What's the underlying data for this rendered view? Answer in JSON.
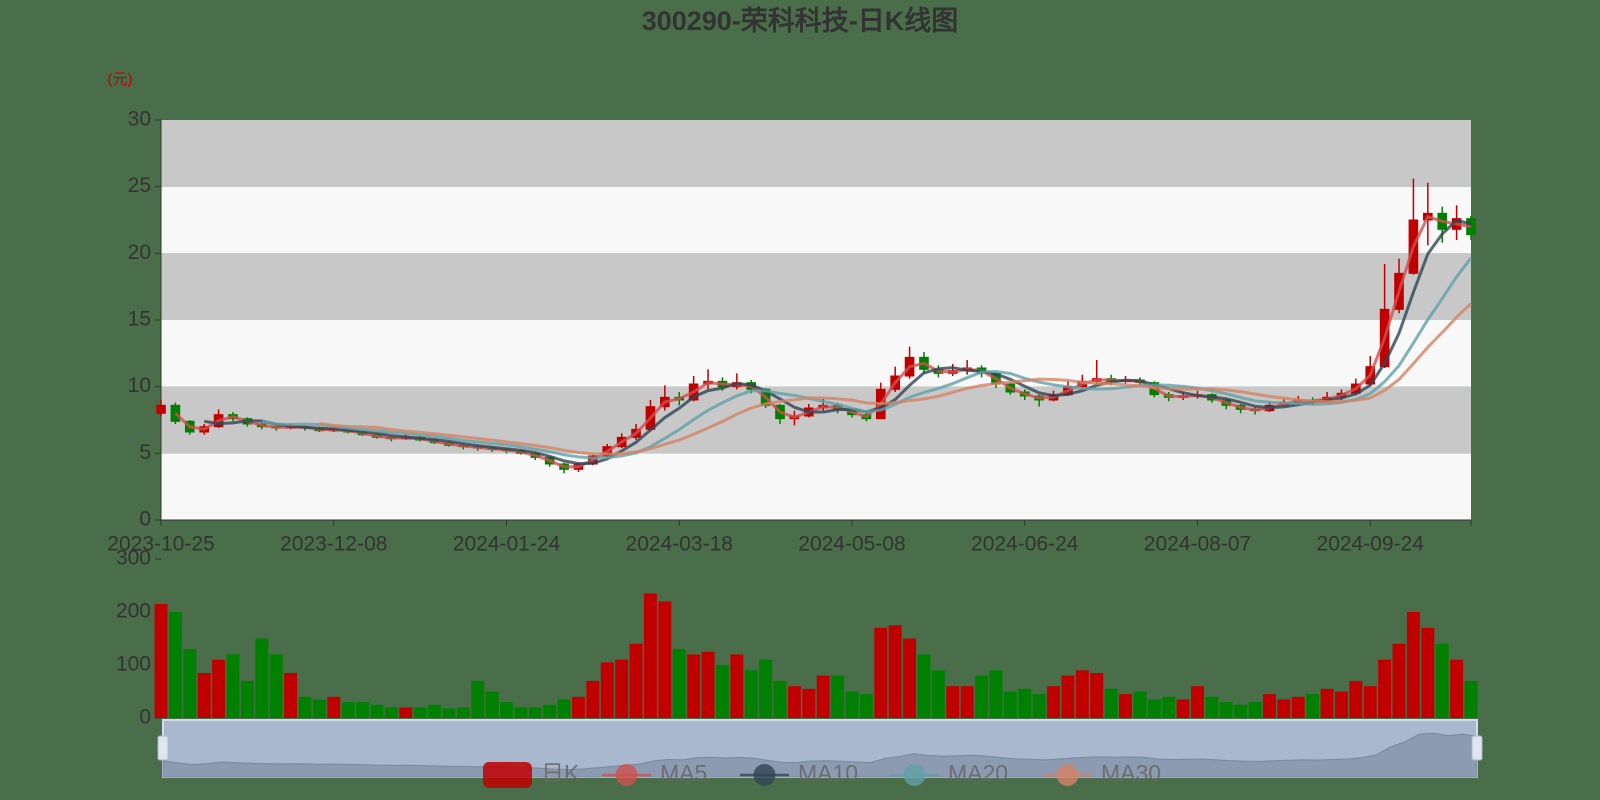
{
  "chart_data": [
    {
      "type": "candlestick",
      "title": "300290-荣科科技-日K线图",
      "y_label": "(元)",
      "categories": [
        "2023-10-25",
        null,
        null,
        null,
        null,
        null,
        null,
        null,
        null,
        null,
        null,
        null,
        "2023-12-08",
        null,
        null,
        null,
        null,
        null,
        null,
        null,
        null,
        null,
        null,
        null,
        "2024-01-24",
        null,
        null,
        null,
        null,
        null,
        null,
        null,
        null,
        null,
        null,
        null,
        "2024-03-18",
        null,
        null,
        null,
        null,
        null,
        null,
        null,
        null,
        null,
        null,
        null,
        "2024-05-08",
        null,
        null,
        null,
        null,
        null,
        null,
        null,
        null,
        null,
        null,
        null,
        "2024-06-24",
        null,
        null,
        null,
        null,
        null,
        null,
        null,
        null,
        null,
        null,
        null,
        "2024-08-07",
        null,
        null,
        null,
        null,
        null,
        null,
        null,
        null,
        null,
        null,
        null,
        "2024-09-24",
        null,
        null,
        null,
        null,
        null,
        null,
        null
      ],
      "series": [
        {
          "name": "日K",
          "color": "#c00000",
          "color_down": "#008000",
          "values": [
            [
              8.0,
              8.6,
              7.8,
              9.0
            ],
            [
              8.6,
              7.4,
              7.2,
              8.8
            ],
            [
              7.4,
              6.6,
              6.4,
              7.5
            ],
            [
              6.6,
              7.0,
              6.4,
              7.2
            ],
            [
              7.0,
              7.9,
              6.9,
              8.3
            ],
            [
              7.9,
              7.6,
              7.4,
              8.1
            ],
            [
              7.6,
              7.2,
              7.0,
              7.7
            ],
            [
              7.2,
              7.0,
              6.8,
              7.3
            ],
            [
              7.0,
              6.9,
              6.7,
              7.2
            ],
            [
              6.9,
              7.0,
              6.8,
              7.2
            ],
            [
              7.0,
              6.9,
              6.7,
              7.1
            ],
            [
              6.9,
              6.7,
              6.6,
              7.0
            ],
            [
              6.7,
              6.8,
              6.6,
              7.0
            ],
            [
              6.8,
              6.6,
              6.5,
              6.9
            ],
            [
              6.6,
              6.4,
              6.3,
              6.7
            ],
            [
              6.4,
              6.2,
              6.1,
              6.5
            ],
            [
              6.2,
              6.1,
              5.9,
              6.3
            ],
            [
              6.1,
              6.2,
              6.0,
              6.4
            ],
            [
              6.2,
              6.0,
              5.9,
              6.3
            ],
            [
              6.0,
              5.8,
              5.7,
              6.1
            ],
            [
              5.8,
              5.6,
              5.5,
              5.9
            ],
            [
              5.6,
              5.5,
              5.3,
              5.7
            ],
            [
              5.5,
              5.4,
              5.2,
              5.6
            ],
            [
              5.4,
              5.3,
              5.1,
              5.5
            ],
            [
              5.3,
              5.2,
              5.0,
              5.4
            ],
            [
              5.2,
              5.0,
              4.9,
              5.3
            ],
            [
              5.0,
              4.7,
              4.5,
              5.1
            ],
            [
              4.7,
              4.2,
              4.0,
              4.8
            ],
            [
              4.2,
              3.8,
              3.5,
              4.3
            ],
            [
              3.8,
              4.2,
              3.6,
              4.3
            ],
            [
              4.2,
              4.8,
              4.1,
              4.9
            ],
            [
              4.8,
              5.5,
              4.7,
              5.7
            ],
            [
              5.5,
              6.2,
              5.4,
              6.5
            ],
            [
              6.2,
              6.8,
              6.0,
              7.2
            ],
            [
              6.8,
              8.5,
              6.7,
              9.0
            ],
            [
              8.5,
              9.2,
              8.2,
              10.1
            ],
            [
              9.2,
              9.0,
              8.6,
              9.6
            ],
            [
              9.0,
              10.2,
              8.9,
              10.8
            ],
            [
              10.2,
              10.4,
              9.8,
              11.3
            ],
            [
              10.4,
              10.0,
              9.7,
              10.7
            ],
            [
              10.0,
              10.3,
              9.8,
              11.0
            ],
            [
              10.3,
              9.8,
              9.5,
              10.5
            ],
            [
              9.8,
              8.6,
              8.4,
              9.9
            ],
            [
              8.6,
              7.6,
              7.2,
              8.7
            ],
            [
              7.6,
              7.8,
              7.1,
              8.2
            ],
            [
              7.8,
              8.4,
              7.7,
              8.7
            ],
            [
              8.4,
              8.6,
              8.2,
              9.1
            ],
            [
              8.6,
              8.3,
              8.0,
              8.8
            ],
            [
              8.3,
              7.9,
              7.7,
              8.4
            ],
            [
              7.9,
              7.6,
              7.4,
              8.0
            ],
            [
              7.6,
              9.8,
              7.6,
              10.3
            ],
            [
              9.8,
              10.8,
              9.6,
              11.5
            ],
            [
              10.8,
              12.2,
              10.6,
              13.0
            ],
            [
              12.2,
              11.3,
              11.0,
              12.6
            ],
            [
              11.3,
              11.0,
              10.7,
              11.6
            ],
            [
              11.0,
              11.2,
              10.8,
              11.7
            ],
            [
              11.2,
              11.4,
              10.9,
              12.0
            ],
            [
              11.4,
              11.0,
              10.7,
              11.6
            ],
            [
              11.0,
              10.2,
              9.9,
              11.1
            ],
            [
              10.2,
              9.6,
              9.4,
              10.3
            ],
            [
              9.6,
              9.3,
              9.0,
              9.8
            ],
            [
              9.3,
              9.0,
              8.5,
              9.4
            ],
            [
              9.0,
              9.4,
              8.9,
              9.7
            ],
            [
              9.4,
              10.0,
              9.3,
              10.4
            ],
            [
              10.0,
              10.4,
              9.8,
              10.9
            ],
            [
              10.4,
              10.6,
              10.2,
              12.0
            ],
            [
              10.6,
              10.4,
              10.1,
              10.9
            ],
            [
              10.4,
              10.5,
              10.2,
              10.8
            ],
            [
              10.5,
              10.3,
              10.0,
              10.7
            ],
            [
              10.3,
              9.4,
              9.2,
              10.4
            ],
            [
              9.4,
              9.2,
              8.9,
              9.6
            ],
            [
              9.2,
              9.3,
              9.0,
              9.6
            ],
            [
              9.3,
              9.4,
              9.1,
              9.7
            ],
            [
              9.4,
              9.0,
              8.8,
              9.5
            ],
            [
              9.0,
              8.6,
              8.3,
              9.1
            ],
            [
              8.6,
              8.3,
              8.0,
              8.7
            ],
            [
              8.3,
              8.2,
              7.9,
              8.5
            ],
            [
              8.2,
              8.6,
              8.1,
              8.9
            ],
            [
              8.6,
              8.8,
              8.5,
              9.1
            ],
            [
              8.8,
              9.0,
              8.7,
              9.3
            ],
            [
              9.0,
              8.9,
              8.6,
              9.2
            ],
            [
              8.9,
              9.2,
              8.8,
              9.6
            ],
            [
              9.2,
              9.5,
              9.0,
              9.8
            ],
            [
              9.5,
              10.2,
              9.4,
              10.6
            ],
            [
              10.2,
              11.5,
              10.1,
              12.3
            ],
            [
              11.5,
              15.8,
              11.4,
              19.2
            ],
            [
              15.8,
              18.5,
              15.5,
              19.6
            ],
            [
              18.5,
              22.5,
              18.4,
              25.6
            ],
            [
              22.5,
              23.0,
              20.6,
              25.3
            ],
            [
              23.0,
              21.8,
              20.8,
              23.5
            ],
            [
              21.8,
              22.6,
              21.0,
              23.6
            ],
            [
              22.6,
              21.4,
              21.0,
              22.8
            ]
          ]
        },
        {
          "name": "MA5",
          "color": "#d0504e",
          "values": [
            null,
            8.0,
            7.0,
            6.8,
            7.45,
            7.75,
            7.4,
            7.1,
            6.95,
            6.95,
            6.95,
            6.8,
            6.75,
            6.7,
            6.5,
            6.3,
            6.15,
            6.15,
            6.1,
            5.9,
            5.7,
            5.55,
            5.45,
            5.35,
            5.25,
            5.1,
            4.85,
            4.45,
            4.0,
            4.0,
            4.5,
            5.15,
            5.85,
            6.5,
            7.65,
            8.85,
            9.1,
            9.6,
            10.3,
            10.2,
            10.15,
            10.05,
            9.2,
            8.1,
            7.7,
            8.1,
            8.5,
            8.45,
            8.1,
            7.75,
            8.7,
            10.3,
            11.5,
            11.75,
            11.15,
            11.1,
            11.3,
            11.2,
            10.6,
            9.9,
            9.45,
            9.15,
            9.2,
            9.7,
            10.2,
            10.5,
            10.5,
            10.45,
            10.4,
            9.85,
            9.3,
            9.25,
            9.35,
            9.2,
            8.8,
            8.45,
            8.25,
            8.4,
            8.7,
            8.9,
            8.95,
            9.05,
            9.35,
            9.85,
            10.85,
            13.65,
            17.15,
            20.5,
            22.75,
            22.4,
            22.2,
            22.0
          ]
        },
        {
          "name": "MA10",
          "color": "#2f4554",
          "values": [
            null,
            null,
            null,
            7.4,
            7.23,
            7.28,
            7.43,
            7.43,
            7.18,
            7.03,
            6.95,
            6.88,
            6.85,
            6.75,
            6.63,
            6.5,
            6.33,
            6.23,
            6.13,
            6.03,
            5.9,
            5.73,
            5.58,
            5.45,
            5.35,
            5.23,
            5.05,
            4.78,
            4.43,
            4.23,
            4.25,
            4.58,
            5.18,
            5.83,
            6.75,
            7.68,
            8.38,
            9.23,
            9.7,
            9.9,
            10.23,
            10.13,
            9.68,
            9.08,
            8.45,
            8.1,
            8.1,
            8.28,
            8.3,
            8.1,
            8.4,
            9.03,
            10.1,
            11.03,
            11.33,
            11.43,
            11.23,
            11.15,
            10.95,
            10.55,
            10.03,
            9.53,
            9.33,
            9.43,
            9.7,
            10.1,
            10.35,
            10.48,
            10.45,
            10.15,
            9.85,
            9.55,
            9.33,
            9.23,
            9.08,
            8.83,
            8.53,
            8.43,
            8.48,
            8.65,
            8.83,
            8.98,
            9.15,
            9.45,
            10.1,
            11.75,
            14.0,
            17.08,
            19.95,
            21.45,
            22.48,
            22.2
          ]
        },
        {
          "name": "MA20",
          "color": "#61a0a8",
          "values": [
            null,
            null,
            null,
            null,
            null,
            null,
            null,
            7.42,
            7.2,
            7.16,
            7.19,
            7.16,
            7.02,
            6.89,
            6.79,
            6.69,
            6.59,
            6.49,
            6.38,
            6.27,
            6.12,
            5.98,
            5.86,
            5.74,
            5.63,
            5.48,
            5.32,
            5.12,
            4.89,
            4.73,
            4.65,
            4.68,
            4.81,
            5.03,
            5.5,
            6.13,
            6.78,
            7.53,
            8.23,
            8.79,
            9.31,
            9.68,
            9.69,
            9.49,
            9.34,
            9.12,
            8.89,
            8.68,
            8.38,
            8.1,
            8.25,
            8.66,
            9.2,
            9.57,
            9.87,
            10.23,
            10.67,
            11.09,
            11.14,
            10.99,
            10.63,
            10.34,
            10.14,
            9.99,
            9.87,
            9.82,
            9.84,
            9.96,
            10.08,
            10.13,
            10.1,
            10.02,
            9.89,
            9.69,
            9.47,
            9.19,
            8.93,
            8.83,
            8.78,
            8.74,
            8.68,
            8.71,
            8.82,
            9.05,
            9.47,
            10.37,
            11.58,
            13.27,
            15.03,
            16.6,
            18.24,
            19.64
          ]
        },
        {
          "name": "MA30",
          "color": "#d48265",
          "values": [
            null,
            null,
            null,
            null,
            null,
            null,
            null,
            null,
            null,
            null,
            null,
            7.24,
            7.09,
            7.02,
            7.0,
            6.94,
            6.79,
            6.67,
            6.57,
            6.47,
            6.36,
            6.24,
            6.11,
            5.99,
            5.86,
            5.73,
            5.59,
            5.42,
            5.23,
            5.06,
            4.96,
            4.94,
            4.99,
            5.1,
            5.35,
            5.68,
            6.0,
            6.43,
            6.9,
            7.39,
            7.93,
            8.4,
            8.71,
            8.89,
            9.02,
            9.15,
            9.16,
            9.09,
            8.99,
            8.78,
            8.73,
            8.8,
            8.95,
            9.08,
            9.28,
            9.58,
            9.88,
            10.09,
            10.23,
            10.34,
            10.45,
            10.57,
            10.54,
            10.47,
            10.32,
            10.26,
            10.21,
            10.15,
            10.06,
            9.93,
            9.84,
            9.82,
            9.83,
            9.83,
            9.76,
            9.62,
            9.44,
            9.27,
            9.14,
            9.01,
            8.9,
            8.88,
            8.9,
            8.98,
            9.15,
            9.72,
            10.54,
            11.73,
            12.96,
            14.06,
            15.21,
            16.24
          ]
        }
      ],
      "ylim": [
        0,
        30
      ],
      "yticks": [
        0,
        5,
        10,
        15,
        20,
        25,
        30
      ],
      "grid": "split-area"
    },
    {
      "type": "bar",
      "values": [
        215,
        200,
        130,
        85,
        110,
        120,
        70,
        150,
        120,
        85,
        40,
        35,
        40,
        30,
        30,
        25,
        20,
        20,
        20,
        25,
        18,
        20,
        70,
        50,
        30,
        20,
        20,
        25,
        35,
        40,
        70,
        105,
        110,
        140,
        235,
        220,
        130,
        120,
        125,
        100,
        120,
        90,
        110,
        70,
        60,
        55,
        80,
        80,
        50,
        45,
        170,
        175,
        150,
        120,
        90,
        60,
        60,
        80,
        90,
        50,
        55,
        45,
        60,
        80,
        90,
        85,
        55,
        45,
        50,
        35,
        40,
        35,
        60,
        40,
        30,
        25,
        30,
        45,
        35,
        40,
        45,
        55,
        50,
        70,
        60,
        110,
        140,
        200,
        170,
        140,
        110,
        70
      ],
      "ylim": [
        0,
        300
      ],
      "yticks": [
        0,
        100,
        200,
        300
      ]
    }
  ]
}
